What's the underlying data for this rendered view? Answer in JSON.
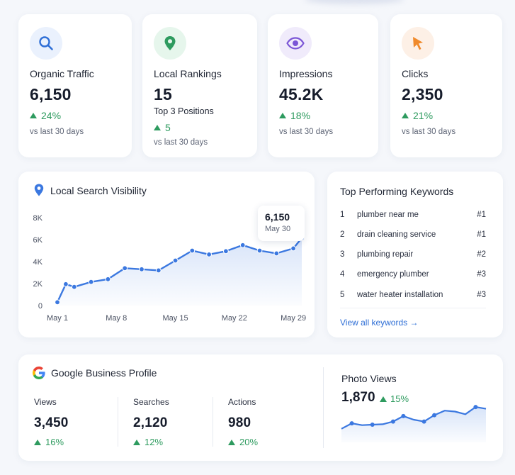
{
  "stats": [
    {
      "icon": "search-icon",
      "label": "Organic Traffic",
      "value": "6,150",
      "change": "24%",
      "note": "vs last 30 days",
      "icon_bg": "#eaf1fd",
      "icon_color": "#2f6fd6"
    },
    {
      "icon": "map-pin-icon",
      "label": "Local Rankings",
      "value": "15",
      "sub": "Top 3 Positions",
      "change": "5",
      "note": "vs last 30 days",
      "icon_bg": "#e6f6ec",
      "icon_color": "#2e9b5f"
    },
    {
      "icon": "eye-icon",
      "label": "Impressions",
      "value": "45.2K",
      "change": "18%",
      "note": "vs last 30 days",
      "icon_bg": "#f0ebfb",
      "icon_color": "#7b56d6"
    },
    {
      "icon": "cursor-icon",
      "label": "Clicks",
      "value": "2,350",
      "change": "21%",
      "note": "vs last 30 days",
      "icon_bg": "#fdf0e6",
      "icon_color": "#f08a2b"
    }
  ],
  "visibility": {
    "title": "Local Search Visibility",
    "tooltip": {
      "value": "6,150",
      "date": "May 30"
    }
  },
  "chart_data": [
    {
      "type": "line",
      "y_ticks": [
        "8K",
        "6K",
        "4K",
        "2K",
        "0"
      ],
      "x_ticks": [
        "May 1",
        "May 8",
        "May 15",
        "May 22",
        "May 29"
      ],
      "ylim": [
        0,
        8000
      ],
      "x_domain": [
        1,
        30
      ],
      "grid": false,
      "series": [
        {
          "x": [
            1,
            2,
            3,
            5,
            7,
            9,
            11,
            13,
            15,
            17,
            19,
            21,
            23,
            25,
            27,
            29,
            30
          ],
          "values": [
            300,
            1950,
            1700,
            2150,
            2400,
            3400,
            3300,
            3200,
            4100,
            5000,
            4650,
            4950,
            5500,
            5000,
            4750,
            5200,
            6150
          ]
        }
      ],
      "color": "#2f6fd6"
    },
    {
      "type": "area",
      "grid": false,
      "series": [
        {
          "values": [
            30,
            42,
            38,
            39,
            40,
            46,
            58,
            50,
            46,
            60,
            70,
            68,
            62,
            78,
            74
          ]
        }
      ],
      "color": "#2f6fd6"
    }
  ],
  "keywords": {
    "title": "Top Performing Keywords",
    "items": [
      {
        "num": "1",
        "keyword": "plumber near me",
        "rank": "#1"
      },
      {
        "num": "2",
        "keyword": "drain cleaning service",
        "rank": "#1"
      },
      {
        "num": "3",
        "keyword": "plumbing repair",
        "rank": "#2"
      },
      {
        "num": "4",
        "keyword": "emergency plumber",
        "rank": "#3"
      },
      {
        "num": "5",
        "keyword": "water heater installation",
        "rank": "#3"
      }
    ],
    "link": "View all keywords →"
  },
  "gbp": {
    "title": "Google Business Profile",
    "metrics": [
      {
        "label": "Views",
        "value": "3,450",
        "change": "16%"
      },
      {
        "label": "Searches",
        "value": "2,120",
        "change": "12%"
      },
      {
        "label": "Actions",
        "value": "980",
        "change": "20%"
      }
    ]
  },
  "photo_views": {
    "title": "Photo Views",
    "value": "1,870",
    "change": "15%"
  }
}
